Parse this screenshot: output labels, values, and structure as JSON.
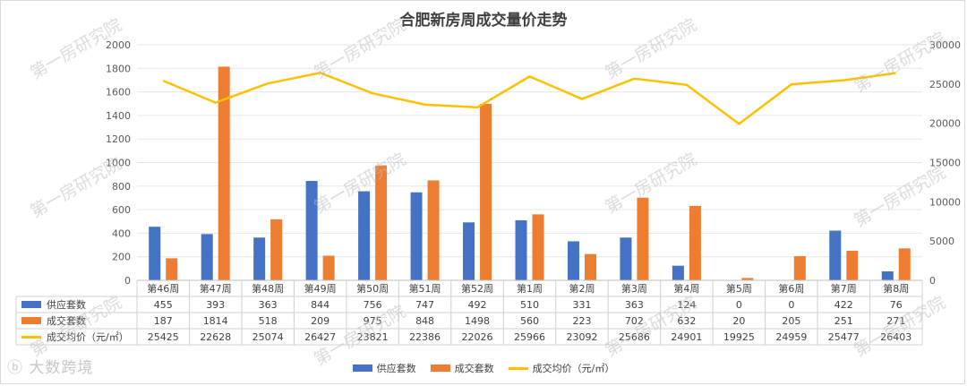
{
  "chart_data": {
    "type": "bar",
    "title": "合肥新房周成交量价走势",
    "categories": [
      "第46周",
      "第47周",
      "第48周",
      "第49周",
      "第50周",
      "第51周",
      "第52周",
      "第1周",
      "第2周",
      "第3周",
      "第4周",
      "第5周",
      "第6周",
      "第7周",
      "第8周"
    ],
    "series": [
      {
        "name": "供应套数",
        "type": "bar",
        "axis": "left",
        "color": "#4472C4",
        "values": [
          455,
          393,
          363,
          844,
          756,
          747,
          492,
          510,
          331,
          363,
          124,
          0,
          0,
          422,
          76
        ]
      },
      {
        "name": "成交套数",
        "type": "bar",
        "axis": "left",
        "color": "#ED7D31",
        "values": [
          187,
          1814,
          518,
          209,
          975,
          848,
          1498,
          560,
          223,
          702,
          632,
          20,
          205,
          251,
          271
        ]
      },
      {
        "name": "成交均价（元/㎡）",
        "type": "line",
        "axis": "right",
        "color": "#FFC000",
        "values": [
          25425,
          22628,
          25074,
          26427,
          23821,
          22386,
          22026,
          25966,
          23092,
          25686,
          24901,
          19925,
          24959,
          25477,
          26403
        ]
      }
    ],
    "y_left": {
      "min": 0,
      "max": 2000,
      "step": 200
    },
    "y_right": {
      "min": 0,
      "max": 30000,
      "step": 5000
    },
    "grid": true,
    "legend_position": "bottom",
    "data_table": true
  },
  "watermark_text": "第一房研究院",
  "logo_text": "大数跨境"
}
